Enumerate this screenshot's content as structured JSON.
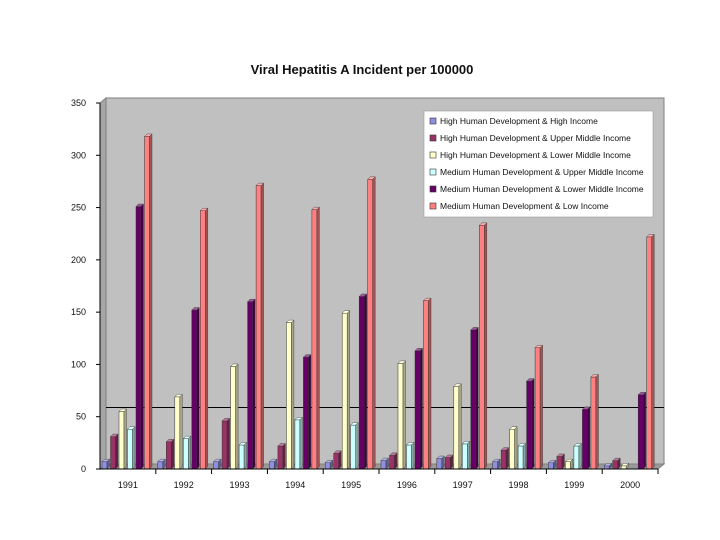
{
  "chart_data": {
    "type": "bar",
    "title": "Viral Hepatitis A Incident per 100000",
    "xlabel": "",
    "ylabel": "",
    "ylim": [
      0,
      350
    ],
    "yticks": [
      0,
      50,
      100,
      150,
      200,
      250,
      300,
      350
    ],
    "grid": false,
    "reference_line": 54,
    "legend_position": "top-right",
    "categories": [
      "1991",
      "1992",
      "1993",
      "1994",
      "1995",
      "1996",
      "1997",
      "1998",
      "1999",
      "2000"
    ],
    "series": [
      {
        "name": "High Human Development & High Income",
        "color": "#8f8fe0",
        "values": [
          7,
          7,
          7,
          7,
          6,
          8,
          10,
          7,
          6,
          3
        ]
      },
      {
        "name": "High Human Development & Upper Middle Income",
        "color": "#993366",
        "values": [
          31,
          26,
          46,
          22,
          15,
          13,
          11,
          18,
          12,
          8
        ]
      },
      {
        "name": "High Human Development & Lower Middle Income",
        "color": "#ffffcc",
        "values": [
          55,
          69,
          98,
          140,
          149,
          101,
          79,
          38,
          7,
          3
        ]
      },
      {
        "name": "Medium Human Development & Upper Middle Income",
        "color": "#ccffff",
        "values": [
          38,
          29,
          23,
          47,
          42,
          23,
          24,
          22,
          22,
          0
        ]
      },
      {
        "name": "Medium Human Development & Lower Middle Income",
        "color": "#660066",
        "values": [
          251,
          152,
          160,
          107,
          165,
          113,
          133,
          84,
          57,
          71
        ]
      },
      {
        "name": "Medium Human Development & Low Income",
        "color": "#ff8080",
        "values": [
          318,
          247,
          271,
          248,
          277,
          161,
          233,
          116,
          88,
          222
        ]
      }
    ]
  }
}
